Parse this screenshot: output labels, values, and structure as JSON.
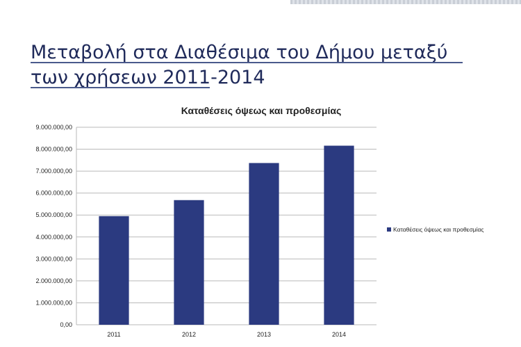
{
  "slide": {
    "title": "Μεταβολή στα Διαθέσιμα του Δήμου μεταξύ των χρήσεων 2011-2014"
  },
  "chart_data": {
    "type": "bar",
    "title": "Καταθέσεις όψεως και προθεσμίας",
    "categories": [
      "2011",
      "2012",
      "2013",
      "2014"
    ],
    "series": [
      {
        "name": "Καταθέσεις όψεως και προθεσμίας",
        "values": [
          4950000,
          5680000,
          7370000,
          8160000
        ]
      }
    ],
    "y_ticks": [
      "0,00",
      "1.000.000,00",
      "2.000.000,00",
      "3.000.000,00",
      "4.000.000,00",
      "5.000.000,00",
      "6.000.000,00",
      "7.000.000,00",
      "8.000.000,00",
      "9.000.000,00"
    ],
    "ylim": [
      0,
      9000000
    ],
    "grid": true,
    "legend_position": "right",
    "colors": {
      "bar": "#2b3a80",
      "grid": "#b9b9b9",
      "text": "#222222"
    }
  }
}
